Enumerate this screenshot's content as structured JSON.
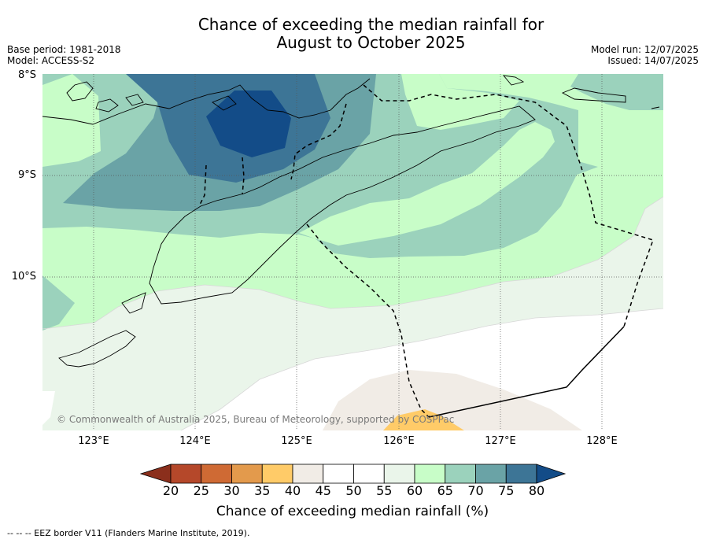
{
  "title_line1": "Chance of exceeding the median rainfall for",
  "title_line2": "August to October 2025",
  "base_period": "Base period: 1981-2018",
  "model": "Model: ACCESS-S2",
  "model_run": "Model run: 12/07/2025",
  "issued": "Issued: 14/07/2025",
  "copyright": "© Commonwealth of Australia 2025, Bureau of Meteorology, supported by COSPPac",
  "lat_labels": [
    "8°S",
    "9°S",
    "10°S"
  ],
  "lon_labels": [
    "123°E",
    "124°E",
    "125°E",
    "126°E",
    "127°E",
    "128°E"
  ],
  "colorbar": {
    "title": "Chance of exceeding median rainfall (%)",
    "ticks": [
      "20",
      "25",
      "30",
      "35",
      "40",
      "45",
      "50",
      "55",
      "60",
      "65",
      "70",
      "75",
      "80"
    ],
    "colors": [
      "#8b2f1c",
      "#b5482a",
      "#cf6a34",
      "#e39a4c",
      "#ffcb68",
      "#f1ece6",
      "#ffffff",
      "#ffffff",
      "#eaf5ea",
      "#c8fdc8",
      "#9bd2bc",
      "#6aa3a6",
      "#3d7596",
      "#134c88"
    ]
  },
  "footnote": "--  --  -- EEZ border V11 (Flanders Marine Institute, 2019)."
}
